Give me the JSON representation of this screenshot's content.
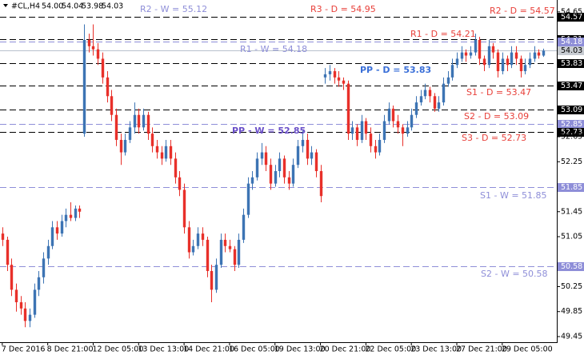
{
  "chart_data": {
    "type": "candlestick",
    "symbol": "#CL,H4",
    "quote": {
      "values": [
        54,
        54.04,
        53.98,
        54.03
      ],
      "value_labels": [
        "54.00",
        "54.04",
        "53.98",
        "54.03"
      ]
    },
    "up_color": "#3d74b4",
    "down_color": "#e8302a",
    "ylim": [
      49.36,
      54.84
    ],
    "yticks": [
      54.65,
      52.65,
      52.25,
      51.45,
      51.05,
      50.25,
      49.85,
      49.45
    ],
    "xlim": [
      -0.5,
      122
    ],
    "xticks": [
      {
        "value": 0,
        "label": "7 Dec 2016"
      },
      {
        "value": 10,
        "label": "8 Dec 21:00"
      },
      {
        "value": 20,
        "label": "12 Dec 05:00"
      },
      {
        "value": 30,
        "label": "13 Dec 13:00"
      },
      {
        "value": 40,
        "label": "14 Dec 21:00"
      },
      {
        "value": 50,
        "label": "16 Dec 05:00"
      },
      {
        "value": 60,
        "label": "19 Dec 13:00"
      },
      {
        "value": 70,
        "label": "20 Dec 21:00"
      },
      {
        "value": 80,
        "label": "22 Dec 05:00"
      },
      {
        "value": 90,
        "label": "23 Dec 13:00"
      },
      {
        "value": 100,
        "label": "27 Dec 21:00"
      },
      {
        "value": 110,
        "label": "29 Dec 05:00"
      }
    ],
    "levels": [
      {
        "label": "R2 - W = 55.12",
        "value": 55.12,
        "color": "#8e8ed8",
        "line_color": "#8e8ed8",
        "bold": false
      },
      {
        "label": "R3 - D = 54.95",
        "value": 54.95,
        "color": "#e8403a",
        "line_color": "#000000",
        "bold": false
      },
      {
        "label": "R2 - D = 54.57",
        "value": 54.57,
        "color": "#e8403a",
        "line_color": "#000000",
        "bold": false
      },
      {
        "label": "R1 - D = 54.21",
        "value": 54.21,
        "color": "#e8403a",
        "line_color": "#000000",
        "bold": false
      },
      {
        "label": "R1 - W = 54.18",
        "value": 54.18,
        "color": "#8e8ed8",
        "line_color": "#8e8ed8",
        "bold": false
      },
      {
        "label": "PP - D = 53.83",
        "value": 53.83,
        "color": "#3a6fd8",
        "line_color": "#000000",
        "bold": true
      },
      {
        "label": "S1 - D = 53.47",
        "value": 53.47,
        "color": "#e8403a",
        "line_color": "#000000",
        "bold": false
      },
      {
        "label": "S2 - D = 53.09",
        "value": 53.09,
        "color": "#e8403a",
        "line_color": "#000000",
        "bold": false
      },
      {
        "label": "PP - W = 52.85",
        "value": 52.85,
        "color": "#6a4fc8",
        "line_color": "#8e8ed8",
        "bold": true
      },
      {
        "label": "S3 - D = 52.73",
        "value": 52.73,
        "color": "#e8403a",
        "line_color": "#000000",
        "bold": false
      },
      {
        "label": "S1 - W = 51.85",
        "value": 51.85,
        "color": "#8e8ed8",
        "line_color": "#8e8ed8",
        "bold": false
      },
      {
        "label": "S2 - W = 50.58",
        "value": 50.58,
        "color": "#8e8ed8",
        "line_color": "#8e8ed8",
        "bold": false
      }
    ],
    "candles": [
      [
        51.1,
        51.2,
        50.9,
        51.0
      ],
      [
        51.0,
        51.05,
        50.5,
        50.6
      ],
      [
        50.6,
        50.7,
        50.1,
        50.2
      ],
      [
        50.2,
        50.3,
        49.85,
        50.0
      ],
      [
        50.0,
        50.1,
        49.8,
        49.9
      ],
      [
        49.9,
        50.0,
        49.6,
        49.7
      ],
      [
        49.7,
        49.9,
        49.6,
        49.8
      ],
      [
        49.8,
        50.3,
        49.75,
        50.2
      ],
      [
        50.2,
        50.5,
        50.1,
        50.4
      ],
      [
        50.4,
        50.8,
        50.3,
        50.7
      ],
      [
        50.7,
        51.0,
        50.6,
        50.9
      ],
      [
        50.9,
        51.3,
        50.85,
        51.2
      ],
      [
        51.2,
        51.3,
        51.0,
        51.1
      ],
      [
        51.1,
        51.4,
        51.05,
        51.3
      ],
      [
        51.3,
        51.5,
        51.2,
        51.4
      ],
      [
        51.4,
        51.6,
        51.3,
        51.35
      ],
      [
        51.35,
        51.55,
        51.3,
        51.5
      ],
      [
        51.5,
        51.55,
        51.35,
        51.45
      ],
      [
        52.7,
        54.45,
        52.65,
        54.2
      ],
      [
        54.2,
        54.3,
        54.0,
        54.1
      ],
      [
        54.1,
        54.45,
        53.95,
        54.05
      ],
      [
        54.05,
        54.15,
        53.8,
        53.9
      ],
      [
        53.9,
        54.0,
        53.5,
        53.6
      ],
      [
        53.6,
        53.7,
        53.2,
        53.3
      ],
      [
        53.3,
        53.4,
        52.9,
        53.0
      ],
      [
        53.0,
        53.1,
        52.5,
        52.6
      ],
      [
        52.6,
        52.7,
        52.2,
        52.4
      ],
      [
        52.4,
        52.7,
        52.35,
        52.6
      ],
      [
        52.6,
        52.9,
        52.55,
        52.8
      ],
      [
        52.8,
        53.2,
        52.7,
        53.0
      ],
      [
        53.0,
        53.1,
        52.7,
        52.8
      ],
      [
        52.8,
        53.1,
        52.75,
        53.0
      ],
      [
        53.0,
        53.05,
        52.6,
        52.7
      ],
      [
        52.7,
        52.8,
        52.4,
        52.5
      ],
      [
        52.5,
        52.6,
        52.3,
        52.4
      ],
      [
        52.4,
        52.5,
        52.2,
        52.3
      ],
      [
        52.3,
        52.6,
        52.25,
        52.5
      ],
      [
        52.5,
        52.6,
        52.2,
        52.3
      ],
      [
        52.3,
        52.4,
        51.9,
        52.0
      ],
      [
        52.0,
        52.1,
        51.7,
        51.8
      ],
      [
        51.8,
        51.9,
        51.1,
        51.2
      ],
      [
        51.2,
        51.3,
        50.7,
        50.8
      ],
      [
        50.8,
        51.0,
        50.75,
        50.9
      ],
      [
        50.9,
        51.2,
        50.85,
        51.1
      ],
      [
        51.1,
        51.2,
        50.9,
        51.0
      ],
      [
        51.0,
        51.05,
        50.4,
        50.5
      ],
      [
        50.5,
        50.6,
        50.0,
        50.2
      ],
      [
        50.2,
        50.7,
        50.15,
        50.6
      ],
      [
        50.6,
        51.1,
        50.55,
        51.0
      ],
      [
        51.0,
        51.1,
        50.8,
        50.9
      ],
      [
        50.9,
        51.0,
        50.8,
        50.85
      ],
      [
        50.85,
        50.9,
        50.5,
        50.6
      ],
      [
        50.6,
        51.1,
        50.55,
        51.0
      ],
      [
        51.0,
        51.5,
        50.95,
        51.4
      ],
      [
        51.4,
        52.0,
        51.35,
        51.9
      ],
      [
        51.9,
        52.1,
        51.8,
        52.0
      ],
      [
        52.0,
        52.4,
        51.95,
        52.3
      ],
      [
        52.3,
        52.55,
        52.2,
        52.4
      ],
      [
        52.4,
        52.5,
        52.1,
        52.2
      ],
      [
        52.2,
        52.3,
        51.8,
        51.9
      ],
      [
        51.9,
        52.2,
        51.85,
        52.1
      ],
      [
        52.1,
        52.4,
        52.0,
        52.3
      ],
      [
        52.3,
        52.35,
        51.9,
        52.0
      ],
      [
        52.0,
        52.1,
        51.8,
        51.9
      ],
      [
        51.9,
        52.3,
        51.85,
        52.2
      ],
      [
        52.2,
        52.6,
        52.15,
        52.5
      ],
      [
        52.5,
        52.75,
        52.4,
        52.6
      ],
      [
        52.6,
        52.7,
        52.2,
        52.3
      ],
      [
        52.3,
        52.5,
        52.2,
        52.4
      ],
      [
        52.4,
        52.45,
        52.0,
        52.1
      ],
      [
        52.1,
        52.2,
        51.6,
        51.7
      ],
      [
        53.6,
        53.75,
        53.5,
        53.65
      ],
      [
        53.65,
        53.8,
        53.55,
        53.7
      ],
      [
        53.7,
        53.75,
        53.5,
        53.6
      ],
      [
        53.6,
        53.7,
        53.45,
        53.55
      ],
      [
        53.55,
        53.6,
        53.4,
        53.5
      ],
      [
        53.5,
        53.55,
        52.6,
        52.7
      ],
      [
        52.7,
        52.9,
        52.6,
        52.8
      ],
      [
        52.8,
        52.85,
        52.5,
        52.6
      ],
      [
        52.6,
        53.0,
        52.55,
        52.9
      ],
      [
        52.9,
        52.95,
        52.6,
        52.7
      ],
      [
        52.7,
        52.8,
        52.4,
        52.5
      ],
      [
        52.5,
        52.6,
        52.3,
        52.4
      ],
      [
        52.4,
        52.7,
        52.35,
        52.6
      ],
      [
        52.6,
        53.0,
        52.55,
        52.9
      ],
      [
        52.9,
        53.2,
        52.85,
        53.1
      ],
      [
        53.1,
        53.15,
        52.8,
        52.9
      ],
      [
        52.9,
        53.0,
        52.7,
        52.8
      ],
      [
        52.8,
        52.85,
        52.5,
        52.7
      ],
      [
        52.7,
        52.9,
        52.65,
        52.8
      ],
      [
        52.8,
        53.1,
        52.75,
        53.0
      ],
      [
        53.0,
        53.3,
        52.95,
        53.2
      ],
      [
        53.2,
        53.4,
        53.15,
        53.3
      ],
      [
        53.3,
        53.5,
        53.25,
        53.4
      ],
      [
        53.4,
        53.45,
        53.2,
        53.3
      ],
      [
        53.3,
        53.35,
        53.05,
        53.1
      ],
      [
        53.1,
        53.3,
        53.05,
        53.2
      ],
      [
        53.2,
        53.6,
        53.15,
        53.5
      ],
      [
        53.5,
        53.7,
        53.45,
        53.6
      ],
      [
        53.6,
        53.9,
        53.55,
        53.8
      ],
      [
        53.8,
        54.0,
        53.75,
        53.9
      ],
      [
        53.9,
        54.1,
        53.85,
        54.0
      ],
      [
        54.0,
        54.05,
        53.85,
        53.95
      ],
      [
        53.95,
        54.1,
        53.9,
        54.0
      ],
      [
        54.0,
        54.3,
        53.95,
        54.2
      ],
      [
        54.2,
        54.25,
        53.8,
        53.9
      ],
      [
        53.9,
        53.95,
        53.7,
        53.8
      ],
      [
        53.8,
        54.2,
        53.75,
        54.1
      ],
      [
        54.1,
        54.15,
        53.9,
        54.0
      ],
      [
        54.0,
        54.05,
        53.6,
        53.7
      ],
      [
        53.7,
        54.0,
        53.65,
        53.9
      ],
      [
        53.9,
        53.95,
        53.7,
        53.8
      ],
      [
        53.8,
        54.1,
        53.75,
        54.0
      ],
      [
        54.0,
        54.1,
        53.8,
        53.9
      ],
      [
        53.9,
        53.95,
        53.6,
        53.7
      ],
      [
        53.7,
        53.9,
        53.65,
        53.8
      ],
      [
        53.8,
        54.0,
        53.75,
        53.9
      ],
      [
        53.9,
        54.1,
        53.85,
        54.0
      ],
      [
        54.0,
        54.05,
        53.9,
        53.95
      ],
      [
        53.95,
        54.06,
        53.93,
        54.03
      ]
    ]
  }
}
